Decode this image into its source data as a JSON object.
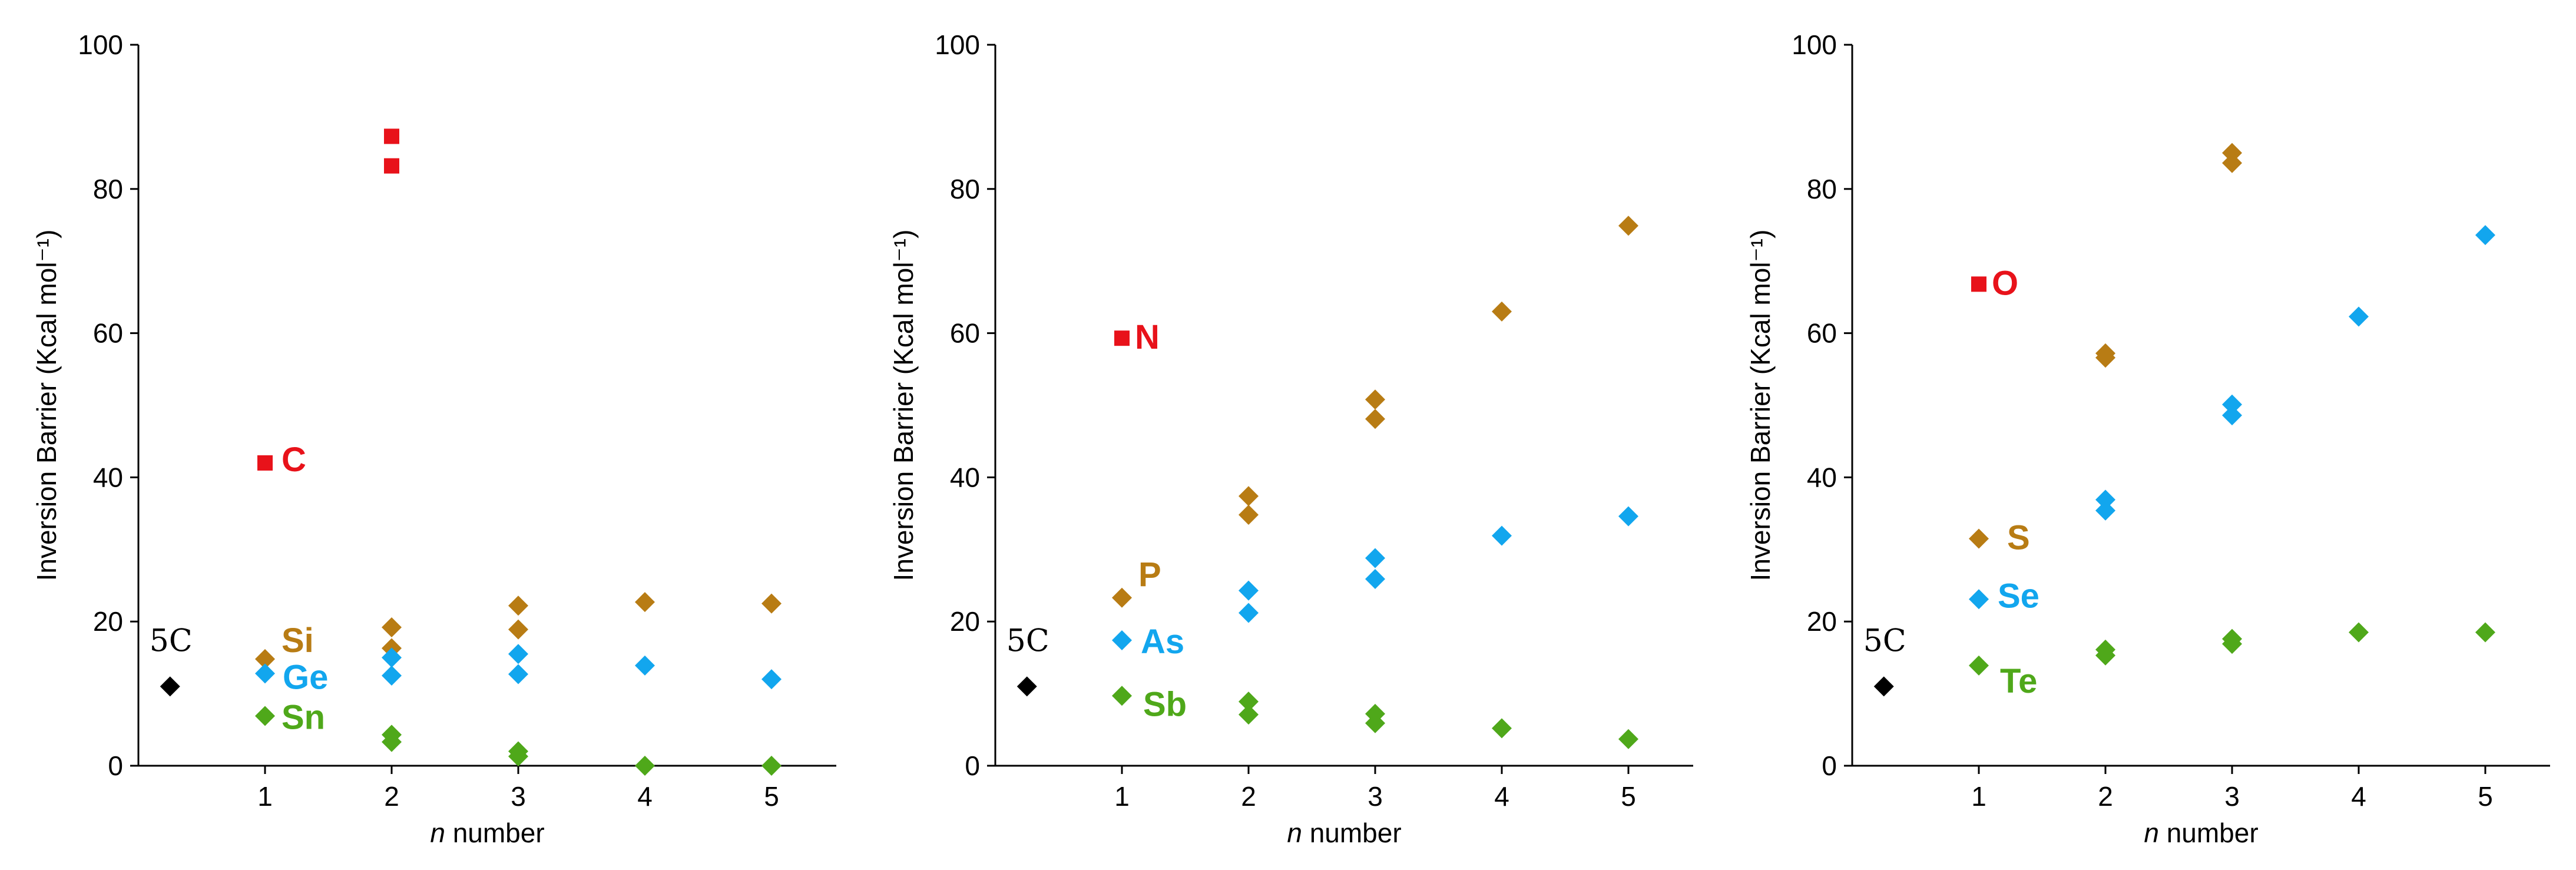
{
  "colors": {
    "red": "#E8121A",
    "gold": "#B87C14",
    "blue": "#12A6EE",
    "green": "#4FA81A",
    "black": "#000000"
  },
  "chart_data": [
    {
      "type": "scatter",
      "title": "",
      "xlabel": "n number",
      "xlabel_italic_prefix": "n",
      "xlabel_rest": " number",
      "ylabel": "Inversion Barrier (Kcal mol⁻¹)",
      "xlim": [
        0,
        5.3
      ],
      "ylim": [
        0,
        100
      ],
      "xticks": [
        1,
        2,
        3,
        4,
        5
      ],
      "yticks": [
        0,
        20,
        40,
        60,
        80,
        100
      ],
      "reference": {
        "label": "5C",
        "x": 0.25,
        "y": 11,
        "color": "#000000"
      },
      "series": [
        {
          "name": "C",
          "color": "#E8121A",
          "marker": "square",
          "points": [
            [
              1,
              42
            ],
            [
              2,
              87.3
            ],
            [
              2,
              83.2
            ]
          ]
        },
        {
          "name": "Si",
          "color": "#B87C14",
          "marker": "diamond",
          "points": [
            [
              1,
              14.8
            ],
            [
              2,
              19.2
            ],
            [
              2,
              16.3
            ],
            [
              3,
              22.2
            ],
            [
              3,
              18.9
            ],
            [
              4,
              22.7
            ],
            [
              5,
              22.5
            ]
          ]
        },
        {
          "name": "Ge",
          "color": "#12A6EE",
          "marker": "diamond",
          "points": [
            [
              1,
              12.8
            ],
            [
              2,
              15
            ],
            [
              2,
              12.5
            ],
            [
              3,
              15.5
            ],
            [
              3,
              12.7
            ],
            [
              4,
              13.9
            ],
            [
              5,
              12
            ]
          ]
        },
        {
          "name": "Sn",
          "color": "#4FA81A",
          "marker": "diamond",
          "points": [
            [
              1,
              6.9
            ],
            [
              2,
              4.3
            ],
            [
              2,
              3.3
            ],
            [
              3,
              2
            ],
            [
              3,
              1.3
            ],
            [
              4,
              0
            ],
            [
              5,
              0
            ]
          ]
        }
      ]
    },
    {
      "type": "scatter",
      "title": "",
      "xlabel": "n number",
      "xlabel_italic_prefix": "n",
      "xlabel_rest": " number",
      "ylabel": "Inversion Barrier (Kcal mol⁻¹)",
      "xlim": [
        0,
        5.3
      ],
      "ylim": [
        0,
        100
      ],
      "xticks": [
        1,
        2,
        3,
        4,
        5
      ],
      "yticks": [
        0,
        20,
        40,
        60,
        80,
        100
      ],
      "reference": {
        "label": "5C",
        "x": 0.25,
        "y": 11,
        "color": "#000000"
      },
      "series": [
        {
          "name": "N",
          "color": "#E8121A",
          "marker": "square",
          "points": [
            [
              1,
              59.3
            ]
          ]
        },
        {
          "name": "P",
          "color": "#B87C14",
          "marker": "diamond",
          "points": [
            [
              1,
              23.3
            ],
            [
              2,
              37.4
            ],
            [
              2,
              34.8
            ],
            [
              3,
              50.8
            ],
            [
              3,
              48.1
            ],
            [
              4,
              63
            ],
            [
              5,
              74.9
            ]
          ]
        },
        {
          "name": "As",
          "color": "#12A6EE",
          "marker": "diamond",
          "points": [
            [
              1,
              17.4
            ],
            [
              2,
              24.3
            ],
            [
              2,
              21.2
            ],
            [
              3,
              28.8
            ],
            [
              3,
              25.9
            ],
            [
              4,
              31.9
            ],
            [
              5,
              34.6
            ]
          ]
        },
        {
          "name": "Sb",
          "color": "#4FA81A",
          "marker": "diamond",
          "points": [
            [
              1,
              9.7
            ],
            [
              2,
              8.9
            ],
            [
              2,
              7.1
            ],
            [
              3,
              7.2
            ],
            [
              3,
              5.9
            ],
            [
              4,
              5.2
            ],
            [
              5,
              3.7
            ]
          ]
        }
      ]
    },
    {
      "type": "scatter",
      "title": "",
      "xlabel": "n number",
      "xlabel_italic_prefix": "n",
      "xlabel_rest": " number",
      "ylabel": "Inversion Barrier (Kcal mol⁻¹)",
      "xlim": [
        0,
        5.3
      ],
      "ylim": [
        0,
        100
      ],
      "xticks": [
        1,
        2,
        3,
        4,
        5
      ],
      "yticks": [
        0,
        20,
        40,
        60,
        80,
        100
      ],
      "reference": {
        "label": "5C",
        "x": 0.25,
        "y": 11,
        "color": "#000000"
      },
      "series": [
        {
          "name": "O",
          "color": "#E8121A",
          "marker": "square",
          "points": [
            [
              1,
              66.8
            ]
          ]
        },
        {
          "name": "S",
          "color": "#B87C14",
          "marker": "diamond",
          "points": [
            [
              1,
              31.5
            ],
            [
              2,
              57.2
            ],
            [
              2,
              56.6
            ],
            [
              3,
              85
            ],
            [
              3,
              83.6
            ]
          ]
        },
        {
          "name": "Se",
          "color": "#12A6EE",
          "marker": "diamond",
          "points": [
            [
              1,
              23.1
            ],
            [
              2,
              36.9
            ],
            [
              2,
              35.4
            ],
            [
              3,
              50.1
            ],
            [
              3,
              48.6
            ],
            [
              4,
              62.3
            ],
            [
              5,
              73.6
            ]
          ]
        },
        {
          "name": "Te",
          "color": "#4FA81A",
          "marker": "diamond",
          "points": [
            [
              1,
              13.9
            ],
            [
              2,
              16.1
            ],
            [
              2,
              15.3
            ],
            [
              3,
              17.6
            ],
            [
              3,
              16.9
            ],
            [
              4,
              18.5
            ],
            [
              5,
              18.5
            ]
          ]
        }
      ]
    }
  ]
}
